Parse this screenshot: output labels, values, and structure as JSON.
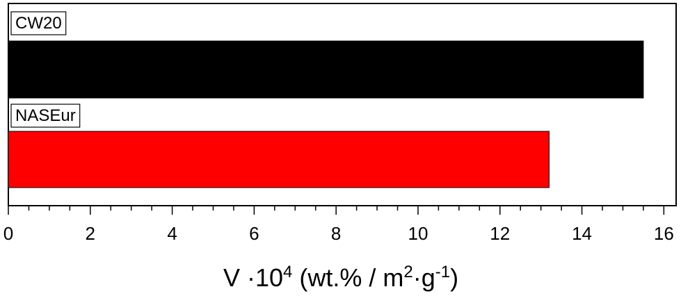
{
  "chart_data": {
    "type": "bar",
    "orientation": "horizontal",
    "categories": [
      "CW20",
      "NASEur"
    ],
    "values": [
      15.5,
      13.2
    ],
    "colors": [
      "#000000",
      "#ff0000"
    ],
    "xlim": [
      0,
      16.3
    ],
    "xticks": [
      0,
      2,
      4,
      6,
      8,
      10,
      12,
      14,
      16
    ],
    "xlabel": {
      "main": "V ·10",
      "exp1": "4",
      "mid": " (wt.% / m",
      "exp2": "2",
      "mid2": "·g",
      "exp3": "-1",
      "end": ")"
    },
    "grid": false,
    "legend": "none"
  }
}
